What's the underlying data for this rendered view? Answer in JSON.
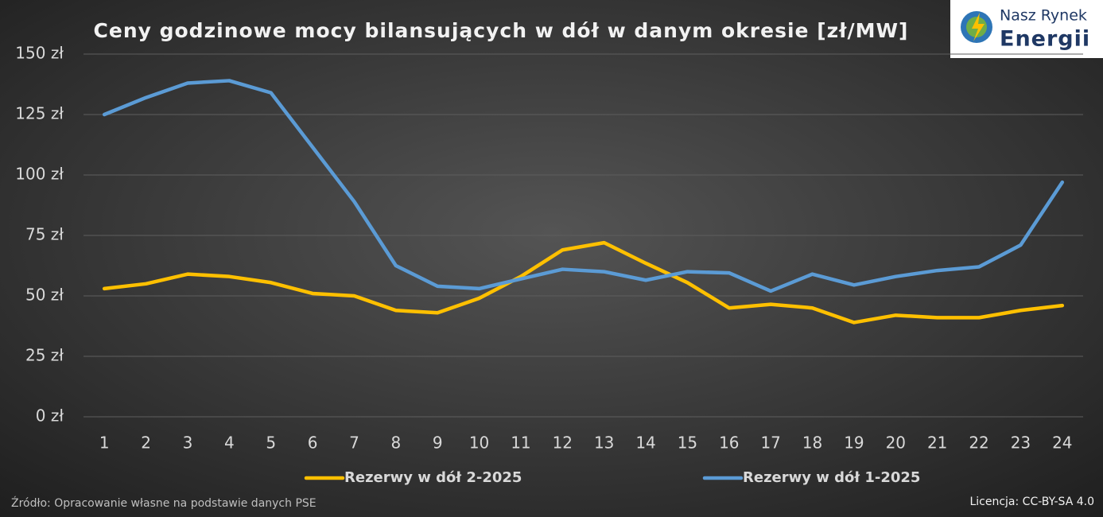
{
  "chart_data": {
    "type": "line",
    "title": "Ceny godzinowe mocy bilansujących w dół w danym okresie [zł/MW]",
    "categories": [
      "1",
      "2",
      "3",
      "4",
      "5",
      "6",
      "7",
      "8",
      "9",
      "10",
      "11",
      "12",
      "13",
      "14",
      "15",
      "16",
      "17",
      "18",
      "19",
      "20",
      "21",
      "22",
      "23",
      "24"
    ],
    "series": [
      {
        "name": "Rezerwy w dół 2-2025",
        "color": "#ffc000",
        "values": [
          53,
          55,
          59,
          58,
          55.5,
          51,
          50,
          44,
          43,
          49,
          58,
          69,
          72,
          63.5,
          55.5,
          45,
          46.5,
          45,
          39,
          42,
          41,
          41,
          44,
          46
        ]
      },
      {
        "name": "Rezerwy w dół 1-2025",
        "color": "#5b9bd5",
        "values": [
          125,
          132,
          138,
          139,
          134,
          111.5,
          89,
          62.5,
          54,
          53,
          57,
          61,
          60,
          56.5,
          60,
          59.5,
          52,
          59,
          54.5,
          58,
          60.5,
          62,
          71,
          97
        ]
      }
    ],
    "ylim": [
      0,
      150
    ],
    "yticks": [
      {
        "value": 0,
        "label": "0 zł"
      },
      {
        "value": 25,
        "label": "25 zł"
      },
      {
        "value": 50,
        "label": "50 zł"
      },
      {
        "value": 75,
        "label": "75 zł"
      },
      {
        "value": 100,
        "label": "100 zł"
      },
      {
        "value": 125,
        "label": "125 zł"
      },
      {
        "value": 150,
        "label": "150 zł"
      }
    ],
    "grid": true,
    "legend": "bottom"
  },
  "logo": {
    "line1": "Nasz Rynek",
    "line2": "Energii"
  },
  "source": "Źródło: Opracowanie własne na podstawie danych PSE",
  "license": "Licencja: CC-BY-SA 4.0"
}
